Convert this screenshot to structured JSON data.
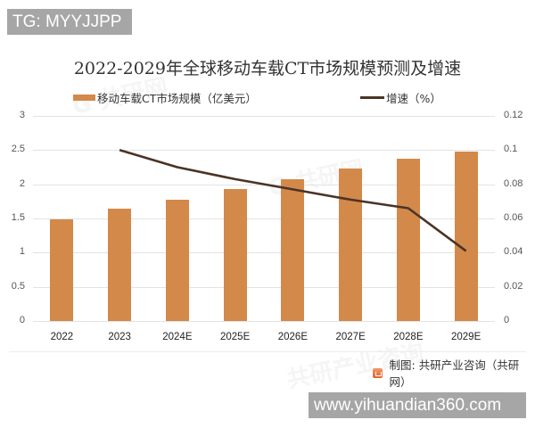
{
  "overlay": {
    "top_badge": "TG: MYYJJPP",
    "bottom_badge": "www.yihuandian360.com"
  },
  "chart": {
    "title": "2022-2029年全球移动车载CT市场规模预测及增速",
    "legend": {
      "bar_label": "移动车载CT市场规模（亿美元）",
      "line_label": "增速（%）"
    },
    "source": "制图: 共研产业咨询（共研网）",
    "left_ticks": [
      "3",
      "2.5",
      "2",
      "1.5",
      "1",
      "0.5",
      "0"
    ],
    "right_ticks": [
      "0.12",
      "0.1",
      "0.08",
      "0.06",
      "0.04",
      "0.02",
      "0"
    ],
    "x_labels": [
      "2022",
      "2023",
      "2024E",
      "2025E",
      "2026E",
      "2027E",
      "2028E",
      "2029E"
    ],
    "colors": {
      "bar": "#d3894a",
      "line": "#4a3426",
      "grid": "#e3e3e3"
    }
  },
  "chart_data": {
    "type": "bar",
    "title": "2022-2029年全球移动车载CT市场规模预测及增速",
    "categories": [
      "2022",
      "2023",
      "2024E",
      "2025E",
      "2026E",
      "2027E",
      "2028E",
      "2029E"
    ],
    "series": [
      {
        "name": "移动车载CT市场规模（亿美元）",
        "type": "bar",
        "axis": "left",
        "values": [
          1.49,
          1.64,
          1.78,
          1.93,
          2.07,
          2.23,
          2.37,
          2.48
        ]
      },
      {
        "name": "增速（%）",
        "type": "line",
        "axis": "right",
        "values": [
          null,
          0.1,
          0.09,
          0.083,
          0.077,
          0.071,
          0.066,
          0.041
        ]
      }
    ],
    "xlabel": "",
    "ylabel": "",
    "ylim": [
      0,
      3
    ],
    "y2lim": [
      0,
      0.12
    ],
    "yticks": [
      0,
      0.5,
      1,
      1.5,
      2,
      2.5,
      3
    ],
    "y2ticks": [
      0,
      0.02,
      0.04,
      0.06,
      0.08,
      0.1,
      0.12
    ],
    "grid": true,
    "legend_position": "top"
  }
}
